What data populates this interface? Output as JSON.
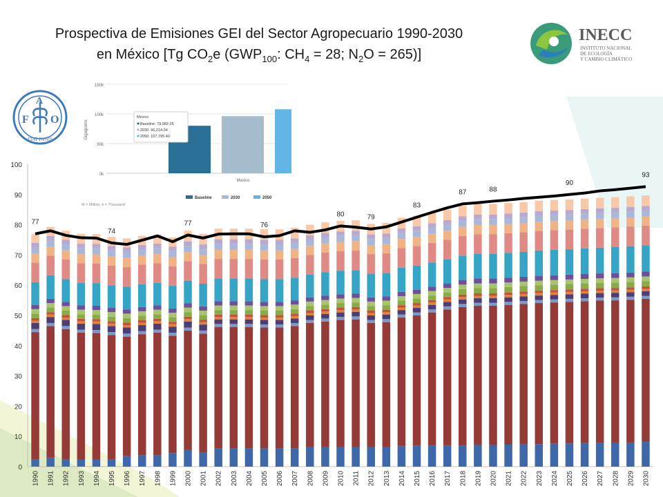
{
  "title": {
    "line1": "Prospectiva de Emisiones GEI del Sector Agropecuario 1990-2030",
    "line2_a": "en México [Tg CO",
    "line2_sub1": "2",
    "line2_b": "e (GWP",
    "line2_sub2": "100",
    "line2_c": ": CH",
    "line2_sub3": "4",
    "line2_d": " = 28; N",
    "line2_sub4": "2",
    "line2_e": "O = 265)]"
  },
  "logos": {
    "inecc_name": "INECC",
    "inecc_sub1": "INSTITUTO NACIONAL",
    "inecc_sub2": "DE ECOLOGÍA",
    "inecc_sub3": "Y CAMBIO CLIMÁTICO",
    "fao_letters": [
      "F",
      "A",
      "O"
    ],
    "fao_motto": "FIAT PANIS"
  },
  "colors": {
    "total_line": "#000000",
    "stack": [
      "#3f68a8",
      "#943a37",
      "#7c99c8",
      "#4c3d74",
      "#e2813c",
      "#c3513c",
      "#8aac48",
      "#a9c470",
      "#6e4f9a",
      "#36a4c5",
      "#e08a86",
      "#f0b386",
      "#a9b8d8",
      "#b9a8d0",
      "#f7c9a8"
    ],
    "inset_baseline": "#2a6f96",
    "inset_2030": "#a5bccd",
    "inset_2050": "#62b6e6"
  },
  "inset": {
    "y_ticks": [
      "150k",
      "100k",
      "50k",
      "0k"
    ],
    "y_label": "Gigagrams",
    "category": "Mexico",
    "tooltip_title": "Mexico",
    "tooltip_lines": [
      "Baseline: 79,982.26",
      "2030: 96,214.04",
      "2050: 107,795.40"
    ],
    "legend": [
      "Baseline",
      "2030",
      "2050"
    ],
    "values": [
      79982.26,
      96214.04,
      107795.4
    ],
    "note": "M = Million, k = Thousand"
  },
  "chart_data": {
    "type": "bar",
    "stacked": true,
    "ylim": [
      0,
      100
    ],
    "y_ticks": [
      0,
      10,
      20,
      30,
      40,
      50,
      60,
      70,
      80,
      90,
      100
    ],
    "grid": false,
    "categories": [
      "1990",
      "1991",
      "1992",
      "1993",
      "1994",
      "1995",
      "1996",
      "1997",
      "1998",
      "1999",
      "2000",
      "2001",
      "2002",
      "2003",
      "2004",
      "2005",
      "2006",
      "2007",
      "2008",
      "2009",
      "2010",
      "2011",
      "2012",
      "2013",
      "2014",
      "2015",
      "2016",
      "2017",
      "2018",
      "2019",
      "2020",
      "2021",
      "2022",
      "2023",
      "2024",
      "2025",
      "2026",
      "2027",
      "2028",
      "2029",
      "2030"
    ],
    "series": [
      {
        "values": [
          2.5,
          3,
          2.5,
          2.3,
          2.4,
          2.5,
          3.5,
          3.8,
          3.8,
          4.5,
          5.5,
          4.8,
          6,
          6,
          6,
          6,
          6,
          6,
          6.5,
          6.5,
          6.5,
          6.5,
          6.5,
          6.5,
          6.8,
          7,
          7,
          7,
          7,
          7.2,
          7.2,
          7.3,
          7.4,
          7.5,
          7.6,
          7.7,
          7.8,
          7.9,
          8,
          8,
          8.2
        ]
      },
      {
        "values": [
          42,
          43.5,
          43,
          42,
          41.8,
          41,
          39.5,
          40,
          40.5,
          38.8,
          39.5,
          39.2,
          40.2,
          40.2,
          40.2,
          40,
          40,
          40.5,
          41,
          41.5,
          42,
          42.2,
          41,
          41.3,
          42.5,
          43,
          44,
          45,
          45.8,
          46,
          46,
          46.2,
          46.4,
          46.6,
          46.7,
          46.8,
          46.9,
          47,
          47,
          47.2,
          47.3
        ]
      },
      {
        "values": [
          1,
          1,
          1,
          1,
          1,
          1,
          1,
          1,
          1,
          1,
          1,
          1,
          1,
          1,
          1,
          1,
          1,
          1,
          1,
          1,
          1,
          1,
          1,
          1,
          1,
          1,
          1,
          1,
          1,
          1,
          1,
          1,
          1,
          1,
          1,
          1,
          1,
          1,
          1,
          1,
          1
        ]
      },
      {
        "values": [
          2,
          2,
          2,
          2,
          2,
          2,
          2,
          2,
          2,
          2,
          2,
          2,
          1.5,
          1.5,
          1.5,
          1.5,
          1.5,
          1.5,
          1.5,
          1.5,
          1.5,
          1.5,
          1.5,
          1.5,
          1.5,
          1.5,
          1.5,
          1.5,
          1.5,
          1.5,
          1.5,
          1.5,
          1.5,
          1.5,
          1.5,
          1.5,
          1.5,
          1.5,
          1.5,
          1.5,
          1.5
        ]
      },
      {
        "values": [
          0.8,
          0.8,
          0.8,
          0.8,
          0.8,
          0.8,
          0.8,
          0.8,
          0.8,
          0.8,
          0.8,
          0.8,
          0.8,
          0.8,
          0.8,
          0.8,
          0.8,
          0.8,
          0.8,
          0.8,
          0.8,
          0.8,
          0.8,
          0.8,
          0.8,
          0.8,
          0.8,
          0.8,
          0.8,
          0.8,
          0.8,
          0.8,
          0.8,
          0.8,
          0.8,
          0.8,
          0.8,
          0.8,
          0.8,
          0.8,
          0.8
        ]
      },
      {
        "values": [
          0.8,
          0.8,
          0.8,
          0.8,
          0.8,
          0.8,
          0.8,
          0.8,
          0.8,
          0.8,
          0.8,
          0.8,
          0.8,
          0.8,
          0.8,
          0.8,
          0.8,
          0.8,
          0.8,
          0.8,
          0.8,
          0.8,
          0.8,
          0.8,
          0.8,
          0.8,
          0.8,
          0.8,
          0.8,
          0.8,
          0.8,
          0.8,
          0.8,
          0.8,
          0.8,
          0.8,
          0.8,
          0.8,
          0.8,
          0.8,
          0.8
        ]
      },
      {
        "values": [
          1.5,
          1.5,
          1.5,
          1.5,
          1.5,
          1.5,
          1.5,
          1.5,
          1.5,
          1.5,
          1.5,
          1.5,
          1.5,
          1.5,
          1.5,
          1.5,
          1.5,
          1.5,
          1.5,
          1.5,
          1.5,
          1.5,
          1.5,
          1.5,
          1.5,
          1.5,
          1.5,
          1.5,
          1.8,
          1.8,
          1.8,
          1.8,
          1.8,
          1.8,
          1.8,
          1.8,
          1.8,
          1.8,
          1.8,
          1.8,
          1.8
        ]
      },
      {
        "values": [
          1.5,
          1.5,
          1.5,
          1.5,
          1.5,
          1.5,
          1.5,
          1.5,
          1.5,
          1.5,
          1.5,
          1.5,
          1.5,
          1.5,
          1.5,
          1.5,
          1.5,
          1.5,
          1.5,
          1.5,
          1.5,
          1.5,
          1.5,
          1.5,
          1.5,
          1.5,
          1.5,
          1.5,
          1.5,
          1.5,
          1.5,
          1.5,
          1.5,
          1.5,
          1.5,
          1.5,
          1.5,
          1.5,
          1.5,
          1.5,
          1.5
        ]
      },
      {
        "values": [
          1.4,
          1.4,
          1.4,
          1.4,
          1.4,
          1.4,
          1.4,
          1.4,
          1.4,
          1.4,
          1.4,
          1.4,
          1.4,
          1.4,
          1.4,
          1.4,
          1.4,
          1.4,
          1.4,
          1.4,
          1.4,
          1.4,
          1.4,
          1.4,
          1.4,
          1.4,
          1.4,
          1.4,
          1.6,
          1.6,
          1.6,
          1.6,
          1.6,
          1.6,
          1.6,
          1.6,
          1.6,
          1.6,
          1.6,
          1.6,
          1.6
        ]
      },
      {
        "values": [
          7.5,
          7.8,
          7.5,
          7.5,
          7.5,
          7.5,
          7.5,
          7.5,
          7.5,
          7.5,
          7.5,
          7.5,
          7.5,
          7.5,
          7.5,
          7.5,
          7.5,
          7.5,
          7.5,
          7.8,
          7.8,
          7.8,
          7.8,
          7.8,
          8,
          8,
          8,
          8,
          8,
          8.2,
          8.2,
          8.2,
          8.2,
          8.4,
          8.4,
          8.4,
          8.5,
          8.5,
          8.6,
          8.7,
          8.7
        ]
      },
      {
        "values": [
          6.5,
          6.5,
          6.5,
          6.5,
          6.5,
          6.5,
          6.5,
          6.5,
          6.5,
          6.5,
          6.5,
          6.5,
          6.5,
          6.5,
          6.5,
          6.5,
          6.5,
          6.5,
          6.5,
          6.5,
          6.5,
          6.5,
          6.5,
          6.5,
          6.5,
          6.5,
          6.5,
          6.5,
          6.5,
          6.5,
          6.5,
          6.5,
          6.5,
          6.5,
          6.5,
          6.5,
          6.5,
          6.5,
          6.5,
          6.5,
          6.5
        ]
      },
      {
        "values": [
          3,
          3,
          3,
          3,
          3,
          3,
          3,
          3,
          3,
          3,
          3,
          3,
          3,
          3,
          3,
          3,
          3,
          3,
          3,
          3,
          3,
          3,
          3,
          3,
          3,
          3,
          3,
          3,
          3,
          3,
          3,
          3,
          3,
          3,
          3,
          3,
          3,
          3,
          3,
          3,
          3
        ]
      },
      {
        "values": [
          2,
          2,
          2,
          2,
          2,
          2,
          2,
          2,
          2,
          2,
          2,
          2,
          2,
          2,
          2,
          2,
          2,
          2,
          2,
          2,
          2,
          2,
          2,
          2,
          2,
          2,
          2,
          2,
          2,
          2,
          2,
          2,
          2,
          2,
          2,
          2,
          2,
          2,
          2,
          2,
          2
        ]
      },
      {
        "values": [
          1.5,
          1.5,
          1.5,
          1.5,
          1.5,
          1.5,
          1.5,
          1.5,
          1.5,
          1.5,
          1.5,
          1.5,
          1.5,
          1.5,
          1.5,
          1.5,
          1.5,
          1.5,
          1.5,
          1.5,
          1.5,
          1.5,
          1.5,
          1.5,
          1.5,
          1.5,
          1.5,
          1.5,
          1.5,
          1.5,
          1.5,
          1.5,
          1.5,
          1.5,
          1.5,
          1.5,
          1.5,
          1.5,
          1.5,
          1.5,
          1.5
        ]
      },
      {
        "values": [
          3,
          3,
          3,
          3.2,
          3.2,
          3,
          3,
          3,
          3,
          3,
          3.5,
          3.5,
          3.5,
          3.5,
          3.5,
          3.5,
          3.5,
          3.5,
          3.5,
          3.5,
          3.5,
          3.5,
          3.5,
          3.5,
          3.5,
          3.5,
          3.5,
          3.5,
          3.5,
          3.5,
          3.5,
          3.5,
          3.5,
          3.5,
          3.5,
          3.5,
          3.5,
          3.5,
          3.5,
          3.5,
          3.5
        ]
      }
    ],
    "total_line": [
      77,
      78,
      76.5,
      75.7,
      75.6,
      74,
      73.5,
      74.9,
      76.3,
      74.4,
      76.6,
      75.6,
      76.9,
      77,
      77,
      76,
      76.4,
      78,
      77.5,
      78.3,
      79.6,
      79.2,
      78.6,
      79.3,
      80.9,
      82.5,
      84.1,
      85.6,
      86.9,
      87.3,
      87.8,
      88.2,
      88.7,
      89.1,
      89.5,
      90,
      90.5,
      91.2,
      91.6,
      92.1,
      92.6
    ],
    "point_labels": [
      {
        "category": "1990",
        "text": "77"
      },
      {
        "category": "1995",
        "text": "74"
      },
      {
        "category": "2000",
        "text": "77"
      },
      {
        "category": "2005",
        "text": "76"
      },
      {
        "category": "2010",
        "text": "80"
      },
      {
        "category": "2012",
        "text": "79"
      },
      {
        "category": "2015",
        "text": "83"
      },
      {
        "category": "2018",
        "text": "87"
      },
      {
        "category": "2020",
        "text": "88"
      },
      {
        "category": "2025",
        "text": "90"
      },
      {
        "category": "2030",
        "text": "93"
      }
    ]
  }
}
